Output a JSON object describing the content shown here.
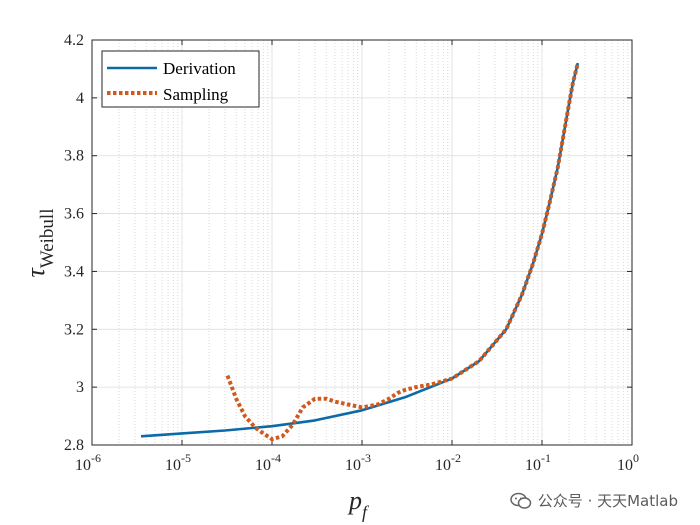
{
  "chart_data": {
    "type": "line",
    "xscale": "log",
    "xlim": [
      1e-06,
      1
    ],
    "ylim": [
      2.8,
      4.2
    ],
    "xticks": [
      {
        "value": 1e-06,
        "label": "10",
        "exp": "-6"
      },
      {
        "value": 1e-05,
        "label": "10",
        "exp": "-5"
      },
      {
        "value": 0.0001,
        "label": "10",
        "exp": "-4"
      },
      {
        "value": 0.001,
        "label": "10",
        "exp": "-3"
      },
      {
        "value": 0.01,
        "label": "10",
        "exp": "-2"
      },
      {
        "value": 0.1,
        "label": "10",
        "exp": "-1"
      },
      {
        "value": 1,
        "label": "10",
        "exp": "0"
      }
    ],
    "yticks": [
      "2.8",
      "3",
      "3.2",
      "3.4",
      "3.6",
      "3.8",
      "4",
      "4.2"
    ],
    "grid": true,
    "xlabel": {
      "main": "p",
      "sub": "f"
    },
    "ylabel": {
      "main": "τ",
      "sub": "Weibull"
    },
    "legend_position": "top-left",
    "series": [
      {
        "name": "Derivation",
        "color": "#0b6aa8",
        "style": "solid",
        "x": [
          3.5e-06,
          1e-05,
          3e-05,
          0.0001,
          0.0003,
          0.001,
          0.003,
          0.01,
          0.02,
          0.04,
          0.06,
          0.08,
          0.1,
          0.12,
          0.15,
          0.18,
          0.2,
          0.22,
          0.25
        ],
        "y": [
          2.83,
          2.84,
          2.85,
          2.865,
          2.885,
          2.92,
          2.965,
          3.03,
          3.09,
          3.2,
          3.32,
          3.43,
          3.53,
          3.63,
          3.76,
          3.9,
          3.98,
          4.05,
          4.12
        ]
      },
      {
        "name": "Sampling",
        "color": "#d05a1e",
        "style": "dotted",
        "x": [
          3.2e-05,
          4e-05,
          5e-05,
          6.5e-05,
          8e-05,
          0.0001,
          0.00013,
          0.00017,
          0.00022,
          0.0003,
          0.0004,
          0.0005,
          0.0007,
          0.001,
          0.0015,
          0.002,
          0.0025,
          0.003,
          0.004,
          0.006,
          0.01,
          0.02,
          0.04,
          0.06,
          0.08,
          0.1,
          0.12,
          0.15,
          0.18,
          0.2,
          0.22,
          0.25
        ],
        "y": [
          3.04,
          2.96,
          2.9,
          2.86,
          2.84,
          2.82,
          2.83,
          2.87,
          2.93,
          2.96,
          2.96,
          2.95,
          2.94,
          2.93,
          2.94,
          2.96,
          2.98,
          2.99,
          3.0,
          3.01,
          3.03,
          3.09,
          3.2,
          3.32,
          3.43,
          3.53,
          3.63,
          3.76,
          3.9,
          3.98,
          4.05,
          4.12
        ]
      }
    ]
  },
  "watermark": {
    "text": "公众号 · 天天Matlab",
    "icon": "wechat-icon"
  }
}
